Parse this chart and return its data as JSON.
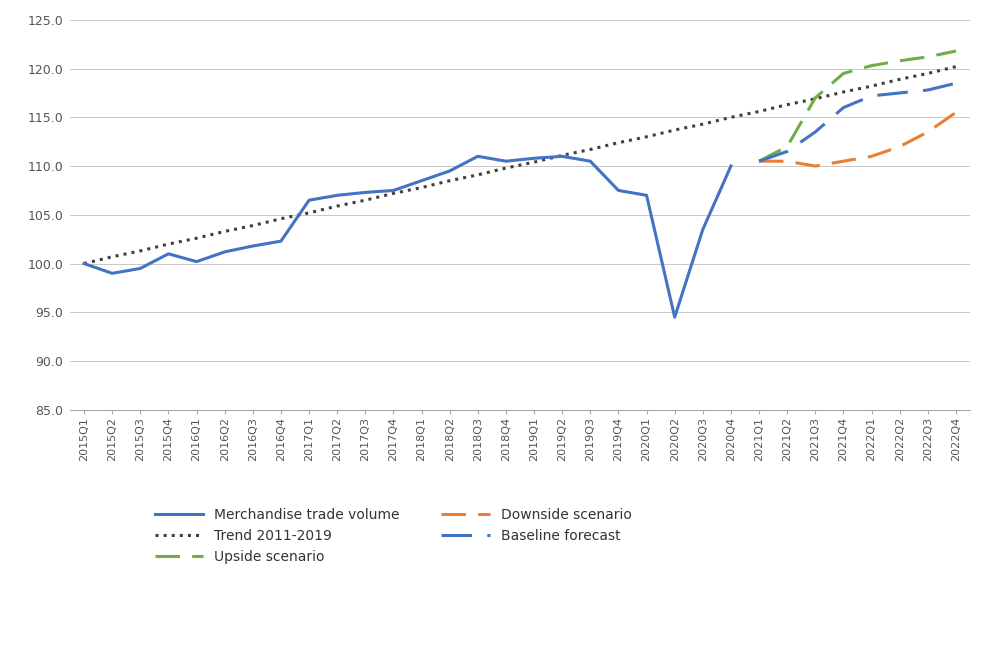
{
  "quarters": [
    "2015Q1",
    "2015Q2",
    "2015Q3",
    "2015Q4",
    "2016Q1",
    "2016Q2",
    "2016Q3",
    "2016Q4",
    "2017Q1",
    "2017Q2",
    "2017Q3",
    "2017Q4",
    "2018Q1",
    "2018Q2",
    "2018Q3",
    "2018Q4",
    "2019Q1",
    "2019Q2",
    "2019Q3",
    "2019Q4",
    "2020Q1",
    "2020Q2",
    "2020Q3",
    "2020Q4",
    "2021Q1",
    "2021Q2",
    "2021Q3",
    "2021Q4",
    "2022Q1",
    "2022Q2",
    "2022Q3",
    "2022Q4"
  ],
  "merchandise": [
    100.0,
    99.0,
    99.5,
    101.0,
    100.2,
    101.2,
    101.8,
    102.3,
    106.5,
    107.0,
    107.3,
    107.5,
    108.5,
    109.5,
    111.0,
    110.5,
    110.8,
    111.0,
    110.5,
    107.5,
    107.0,
    94.5,
    103.5,
    110.0,
    null,
    null,
    null,
    null,
    null,
    null,
    null,
    null
  ],
  "trend": [
    100.0,
    100.7,
    101.3,
    102.0,
    102.6,
    103.3,
    103.9,
    104.6,
    105.2,
    105.9,
    106.5,
    107.2,
    107.8,
    108.5,
    109.1,
    109.8,
    110.4,
    111.1,
    111.7,
    112.4,
    113.0,
    113.7,
    114.3,
    115.0,
    115.6,
    116.3,
    116.9,
    117.6,
    118.2,
    118.9,
    119.5,
    120.2
  ],
  "upside": [
    null,
    null,
    null,
    null,
    null,
    null,
    null,
    null,
    null,
    null,
    null,
    null,
    null,
    null,
    null,
    null,
    null,
    null,
    null,
    null,
    null,
    null,
    null,
    null,
    110.5,
    112.0,
    117.0,
    119.5,
    120.3,
    120.8,
    121.2,
    121.8
  ],
  "downside": [
    null,
    null,
    null,
    null,
    null,
    null,
    null,
    null,
    null,
    null,
    null,
    null,
    null,
    null,
    null,
    null,
    null,
    null,
    null,
    null,
    null,
    null,
    null,
    null,
    110.5,
    110.5,
    110.0,
    110.5,
    111.0,
    112.0,
    113.5,
    115.5
  ],
  "baseline": [
    null,
    null,
    null,
    null,
    null,
    null,
    null,
    null,
    null,
    null,
    null,
    null,
    null,
    null,
    null,
    null,
    null,
    null,
    null,
    null,
    null,
    null,
    null,
    null,
    110.5,
    111.5,
    113.5,
    116.0,
    117.2,
    117.5,
    117.8,
    118.5
  ],
  "merchandise_color": "#4472C4",
  "trend_color": "#404040",
  "upside_color": "#70AD47",
  "downside_color": "#ED7D31",
  "baseline_color": "#4472C4",
  "ylim": [
    85.0,
    125.0
  ],
  "yticks": [
    85.0,
    90.0,
    95.0,
    100.0,
    105.0,
    110.0,
    115.0,
    120.0,
    125.0
  ],
  "legend_labels": [
    "Merchandise trade volume",
    "Trend 2011-2019",
    "Upside scenario",
    "Downside scenario",
    "Baseline forecast"
  ],
  "bg_color": "#ffffff",
  "grid_color": "#C8C8C8"
}
